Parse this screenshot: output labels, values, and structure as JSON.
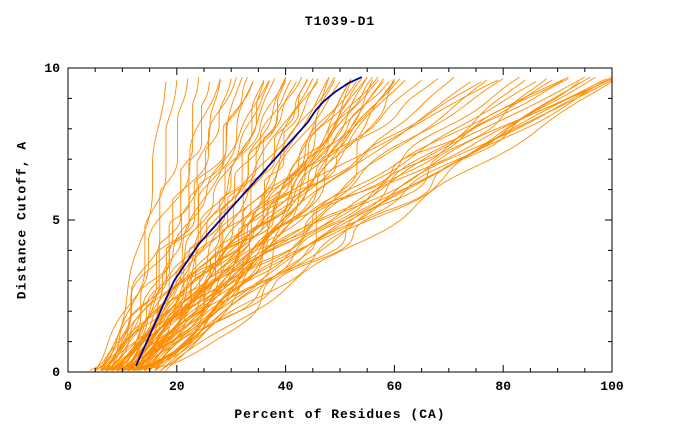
{
  "chart_data": {
    "type": "line",
    "title": "T1039-D1",
    "xlabel": "Percent of Residues (CA)",
    "ylabel": "Distance Cutoff, A",
    "xlim": [
      0,
      100
    ],
    "ylim": [
      0,
      10
    ],
    "x_major_ticks": [
      0,
      20,
      40,
      60,
      80,
      100
    ],
    "x_minor_step": 5,
    "y_major_ticks": [
      0,
      5,
      10
    ],
    "y_minor_step": 1,
    "grid": false,
    "legend": "none",
    "colors": {
      "model_curves": "#ff8c00",
      "highlight_curve": "#000099",
      "axis": "#000000",
      "background": "#ffffff"
    },
    "highlight_series": {
      "name": "highlighted-model",
      "points_xy": [
        [
          12.5,
          0.2
        ],
        [
          13.5,
          0.6
        ],
        [
          14.5,
          1.0
        ],
        [
          15.5,
          1.4
        ],
        [
          16.5,
          1.8
        ],
        [
          17.5,
          2.2
        ],
        [
          18.5,
          2.6
        ],
        [
          19.5,
          3.0
        ],
        [
          21,
          3.4
        ],
        [
          22.5,
          3.8
        ],
        [
          24,
          4.2
        ],
        [
          25.5,
          4.5
        ],
        [
          27,
          4.8
        ],
        [
          28.5,
          5.1
        ],
        [
          30,
          5.4
        ],
        [
          32,
          5.8
        ],
        [
          34,
          6.2
        ],
        [
          36,
          6.6
        ],
        [
          38,
          7.0
        ],
        [
          40,
          7.4
        ],
        [
          42,
          7.8
        ],
        [
          44,
          8.2
        ],
        [
          45.5,
          8.6
        ],
        [
          47,
          8.9
        ],
        [
          49,
          9.2
        ],
        [
          51.5,
          9.5
        ],
        [
          54,
          9.7
        ]
      ]
    },
    "model_curves_param_format": [
      "x_at_cutoff0",
      "x_at_cutoff10",
      "shape_exponent"
    ],
    "model_curves": [
      [
        4,
        18,
        0.5
      ],
      [
        5,
        20,
        0.55
      ],
      [
        5,
        22,
        0.6
      ],
      [
        6,
        24,
        0.52
      ],
      [
        6,
        26,
        0.65
      ],
      [
        7,
        28,
        0.58
      ],
      [
        7,
        30,
        0.7
      ],
      [
        8,
        32,
        0.62
      ],
      [
        8,
        34,
        0.75
      ],
      [
        9,
        36,
        0.68
      ],
      [
        9,
        38,
        0.8
      ],
      [
        10,
        40,
        0.72
      ],
      [
        10,
        42,
        0.85
      ],
      [
        11,
        44,
        0.78
      ],
      [
        11,
        46,
        0.9
      ],
      [
        12,
        48,
        0.82
      ],
      [
        12,
        50,
        0.95
      ],
      [
        13,
        52,
        0.88
      ],
      [
        13,
        54,
        1.0
      ],
      [
        14,
        56,
        0.92
      ],
      [
        14,
        58,
        1.05
      ],
      [
        15,
        60,
        0.96
      ],
      [
        5,
        28,
        0.9
      ],
      [
        6,
        31,
        0.95
      ],
      [
        7,
        34,
        1.0
      ],
      [
        8,
        37,
        1.05
      ],
      [
        9,
        40,
        0.95
      ],
      [
        10,
        43,
        1.0
      ],
      [
        11,
        46,
        1.05
      ],
      [
        12,
        49,
        0.6
      ],
      [
        13,
        52,
        0.65
      ],
      [
        14,
        55,
        0.7
      ],
      [
        6,
        36,
        0.45
      ],
      [
        7,
        40,
        0.5
      ],
      [
        8,
        44,
        0.55
      ],
      [
        9,
        48,
        0.48
      ],
      [
        10,
        52,
        0.52
      ],
      [
        11,
        56,
        0.56
      ],
      [
        12,
        60,
        0.5
      ],
      [
        5,
        33,
        0.75
      ],
      [
        6,
        37,
        0.78
      ],
      [
        7,
        41,
        0.82
      ],
      [
        8,
        45,
        0.86
      ],
      [
        9,
        49,
        0.9
      ],
      [
        10,
        53,
        0.94
      ],
      [
        11,
        57,
        0.98
      ],
      [
        12,
        61,
        1.02
      ],
      [
        13,
        57,
        1.1
      ],
      [
        14,
        59,
        1.15
      ],
      [
        15,
        62,
        1.08
      ],
      [
        16,
        58,
        0.85
      ],
      [
        16,
        55,
        1.0
      ],
      [
        17,
        60,
        0.9
      ],
      [
        6,
        65,
        1.05
      ],
      [
        7,
        68,
        1.1
      ],
      [
        8,
        71,
        1.0
      ],
      [
        9,
        74,
        1.15
      ],
      [
        10,
        77,
        1.05
      ],
      [
        11,
        80,
        1.2
      ],
      [
        12,
        83,
        1.1
      ],
      [
        13,
        86,
        1.25
      ],
      [
        14,
        89,
        1.15
      ],
      [
        15,
        92,
        1.3
      ],
      [
        8,
        95,
        1.2
      ],
      [
        9,
        98,
        1.28
      ],
      [
        10,
        100,
        1.18
      ],
      [
        11,
        100,
        1.35
      ],
      [
        12,
        97,
        1.08
      ],
      [
        13,
        94,
        0.95
      ],
      [
        14,
        91,
        1.4
      ],
      [
        15,
        99,
        1.22
      ],
      [
        16,
        96,
        1.12
      ],
      [
        17,
        100,
        1.02
      ],
      [
        9,
        84,
        0.9
      ],
      [
        10,
        88,
        0.85
      ],
      [
        12,
        92,
        1.45
      ],
      [
        7,
        76,
        1.3
      ],
      [
        8,
        79,
        1.5
      ],
      [
        16,
        100,
        1.3
      ],
      [
        18,
        100,
        1.15
      ]
    ]
  }
}
